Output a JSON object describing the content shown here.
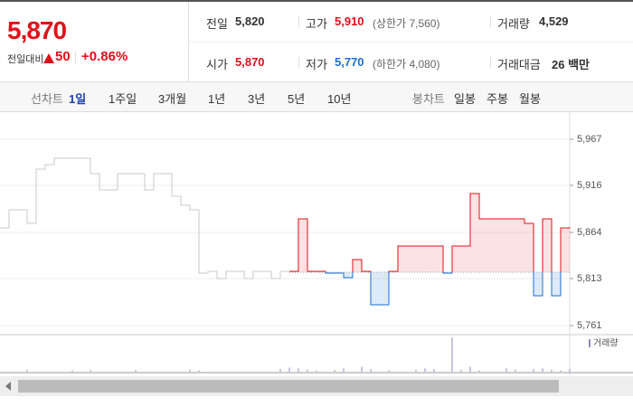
{
  "header": {
    "price": "5,870",
    "change_label": "전일대비",
    "change": "50",
    "change_rate": "+0.86%"
  },
  "stats": [
    {
      "label": "전일",
      "value": "5,820"
    },
    {
      "label": "고가",
      "value": "5,910",
      "note": "(상한가 7,560)"
    },
    {
      "label": "거래량",
      "value": "4,529"
    },
    {
      "label": "시가",
      "value": "5,870"
    },
    {
      "label": "저가",
      "value": "5,770",
      "note": "(하한가 4,080)"
    },
    {
      "label": "거래대금",
      "value": "26 백만"
    }
  ],
  "tabs": {
    "line_label": "선차트",
    "line_periods": [
      "1일",
      "1주일",
      "3개월",
      "1년",
      "3년",
      "5년",
      "10년"
    ],
    "candle_label": "봉차트",
    "candle_periods": [
      "일봉",
      "주봉",
      "월봉"
    ]
  },
  "chart_data": {
    "type": "line",
    "ylim": [
      5754,
      5989
    ],
    "yticks": [
      {
        "value": 5967,
        "label": "5,967"
      },
      {
        "value": 5916,
        "label": "5,916"
      },
      {
        "value": 5864,
        "label": "5,864"
      },
      {
        "value": 5813,
        "label": "5,813"
      },
      {
        "value": 5761,
        "label": "5,761"
      }
    ],
    "baseline": 5820,
    "up_color": "#e0101a",
    "down_color": "#1a6fd6",
    "series": [
      {
        "color": "#c8c8c8",
        "values": [
          5869,
          5889,
          5889,
          5874,
          5934,
          5939,
          5946,
          5946,
          5946,
          5946,
          5929,
          5911,
          5911,
          5929,
          5929,
          5929,
          5911,
          5929,
          5929,
          5904,
          5894,
          5889,
          5819,
          5821,
          5813,
          5821,
          5821,
          5813,
          5821,
          5821,
          5813,
          5821,
          5821,
          null,
          null,
          null,
          null,
          null,
          null,
          null,
          null,
          null,
          null,
          null,
          null,
          null,
          null,
          null,
          null,
          null,
          null,
          null,
          null,
          null,
          null,
          null,
          null,
          null,
          null,
          null,
          null,
          null,
          null,
          null
        ]
      },
      {
        "color": "#e0101a",
        "values": [
          null,
          null,
          null,
          null,
          null,
          null,
          null,
          null,
          null,
          null,
          null,
          null,
          null,
          null,
          null,
          null,
          null,
          null,
          null,
          null,
          null,
          null,
          null,
          null,
          null,
          null,
          null,
          null,
          null,
          null,
          null,
          null,
          5821,
          5879,
          5821,
          5821,
          5819,
          5819,
          5814,
          5834,
          5821,
          5784,
          5784,
          5821,
          5849,
          5849,
          5849,
          5849,
          5849,
          5819,
          5849,
          5849,
          5907,
          5879,
          5879,
          5879,
          5879,
          5879,
          5874,
          5794,
          5879,
          5794,
          5869,
          5870
        ]
      }
    ],
    "volume": {
      "name": "거래량",
      "color": "#9b86c0",
      "axis": "y2",
      "values": [
        0,
        0,
        0,
        6,
        0,
        0,
        0,
        0,
        4,
        0,
        5,
        0,
        0,
        0,
        0,
        5,
        0,
        0,
        0,
        0,
        0,
        6,
        4,
        0,
        0,
        0,
        0,
        0,
        0,
        0,
        0,
        8,
        12,
        10,
        6,
        4,
        0,
        5,
        10,
        0,
        14,
        8,
        0,
        4,
        0,
        0,
        6,
        10,
        8,
        0,
        100,
        6,
        14,
        4,
        0,
        0,
        10,
        6,
        0,
        8,
        10,
        6,
        4,
        8
      ]
    },
    "y2lim": [
      0,
      100
    ]
  }
}
